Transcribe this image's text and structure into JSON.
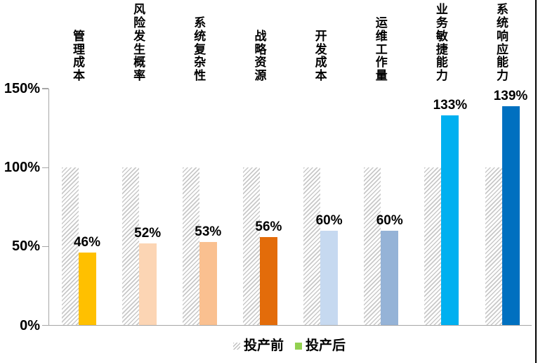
{
  "chart_data": {
    "type": "bar",
    "title": "",
    "categories": [
      "管理成本",
      "风险发生概率",
      "系统复杂性",
      "战略资源",
      "开发成本",
      "运维工作量",
      "业务敏捷能力",
      "系统响应能力"
    ],
    "series": [
      {
        "name": "投产前",
        "values": [
          100,
          100,
          100,
          100,
          100,
          100,
          100,
          100
        ],
        "style": "hatched-gray"
      },
      {
        "name": "投产后",
        "values": [
          46,
          52,
          53,
          56,
          60,
          60,
          133,
          139
        ],
        "colors": [
          "#FFC000",
          "#FCD5B4",
          "#FAC090",
          "#E36C0A",
          "#C6D9F0",
          "#95B3D7",
          "#00B0F0",
          "#0070C0"
        ]
      }
    ],
    "value_labels": [
      "46%",
      "52%",
      "53%",
      "56%",
      "60%",
      "60%",
      "133%",
      "139%"
    ],
    "y_ticks": [
      {
        "label": "150%",
        "value": 150
      },
      {
        "label": "100%",
        "value": 100
      },
      {
        "label": "50%",
        "value": 50
      },
      {
        "label": "0%",
        "value": 0
      }
    ],
    "ylim": [
      0,
      150
    ],
    "grid": false,
    "legend_position": "bottom-center"
  },
  "legend": {
    "items": [
      {
        "label": "投产前",
        "marker": "hatched"
      },
      {
        "label": "投产后",
        "marker_color": "#92D050"
      }
    ]
  },
  "colors": {
    "hatch_stripe": "#C8C8C8",
    "axis_line": "#A6A6A6",
    "text": "#000000",
    "right_border": "#000000"
  }
}
